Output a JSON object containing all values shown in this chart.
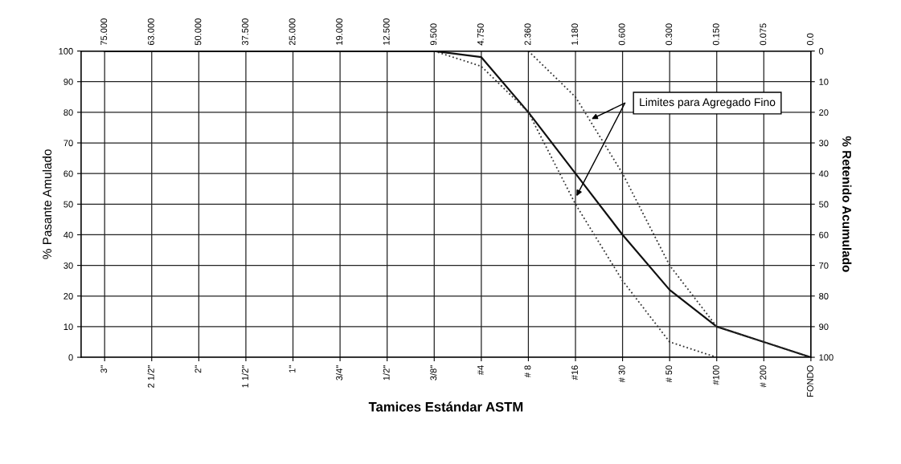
{
  "chart_data": {
    "type": "line",
    "xlabel": "Tamices Estándar ASTM",
    "ylabel": "% Pasante Amulado",
    "y2label": "% Retenido Acumulado",
    "categories": [
      "3\"",
      "2 1/2\"",
      "2\"",
      "1 1/2\"",
      "1\"",
      "3/4\"",
      "1/2\"",
      "3/8\"",
      "#4",
      "# 8",
      "#16",
      "# 30",
      "# 50",
      "#100",
      "# 200",
      "FONDO"
    ],
    "series": [
      {
        "color": "#111111",
        "line_style": "solid",
        "values": [
          100,
          100,
          100,
          100,
          100,
          100,
          100,
          100,
          98,
          80,
          60,
          40,
          22,
          10,
          5,
          0
        ]
      },
      {
        "color": "#333333",
        "line_style": "dotted",
        "values": [
          null,
          null,
          null,
          null,
          null,
          null,
          null,
          null,
          null,
          100,
          85,
          60,
          30,
          10,
          5,
          0
        ]
      },
      {
        "color": "#333333",
        "line_style": "dotted",
        "values": [
          null,
          null,
          null,
          null,
          null,
          null,
          null,
          100,
          95,
          80,
          50,
          25,
          5,
          0,
          null,
          null
        ]
      }
    ],
    "ylim": [
      0,
      100
    ],
    "yticks": [
      0,
      10,
      20,
      30,
      40,
      50,
      60,
      70,
      80,
      90,
      100
    ],
    "y2lim": [
      100,
      0
    ],
    "y2ticks": [
      0,
      10,
      20,
      30,
      40,
      50,
      60,
      70,
      80,
      90,
      100
    ],
    "grid": true,
    "legend": false,
    "marker": "none",
    "annotations": [
      "Limites para Agregado Fino",
      "75.000",
      "63.000",
      "50.000",
      "37.500",
      "25.000",
      "19.000",
      "12.500",
      "9.500",
      "4.750",
      "2.360",
      "1.180",
      "0.600",
      "0.300",
      "0.150",
      "0.075",
      "0.0"
    ]
  }
}
